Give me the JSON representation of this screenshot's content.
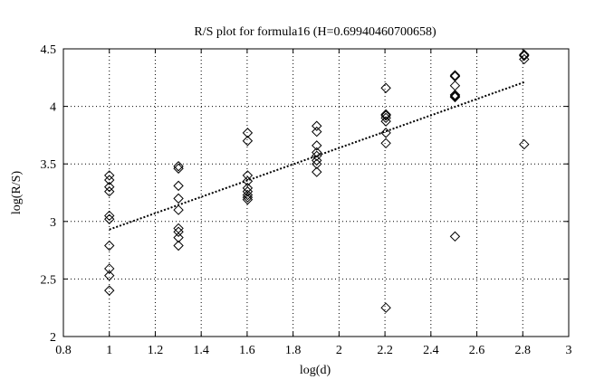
{
  "chart_data": {
    "type": "scatter",
    "title": "R/S plot for formula16 (H=0.69940460700658)",
    "xlabel": "log(d)",
    "ylabel": "log(R/S)",
    "xlim": [
      0.8,
      3
    ],
    "ylim": [
      2,
      4.5
    ],
    "xticks": [
      0.8,
      1,
      1.2,
      1.4,
      1.6,
      1.8,
      2,
      2.2,
      2.4,
      2.6,
      2.8,
      3
    ],
    "xtick_labels": [
      "0.8",
      "1",
      "1.2",
      "1.4",
      "1.6",
      "1.8",
      "2",
      "2.2",
      "2.4",
      "2.6",
      "2.8",
      "3"
    ],
    "yticks": [
      2,
      2.5,
      3,
      3.5,
      4,
      4.5
    ],
    "ytick_labels": [
      "2",
      "2.5",
      "3",
      "3.5",
      "4",
      "4.5"
    ],
    "grid": true,
    "marker": "diamond",
    "series": [
      {
        "points": [
          [
            1.0,
            2.4
          ],
          [
            1.0,
            2.53
          ],
          [
            1.0,
            2.59
          ],
          [
            1.0,
            2.79
          ],
          [
            1.0,
            3.02
          ],
          [
            1.0,
            3.05
          ],
          [
            1.0,
            3.26
          ],
          [
            1.0,
            3.3
          ],
          [
            1.0,
            3.36
          ],
          [
            1.0,
            3.4
          ],
          [
            1.301,
            2.79
          ],
          [
            1.301,
            2.86
          ],
          [
            1.301,
            2.91
          ],
          [
            1.301,
            2.94
          ],
          [
            1.301,
            3.1
          ],
          [
            1.301,
            3.2
          ],
          [
            1.301,
            3.31
          ],
          [
            1.301,
            3.46
          ],
          [
            1.301,
            3.48
          ],
          [
            1.602,
            3.19
          ],
          [
            1.602,
            3.21
          ],
          [
            1.602,
            3.23
          ],
          [
            1.602,
            3.26
          ],
          [
            1.602,
            3.29
          ],
          [
            1.602,
            3.35
          ],
          [
            1.602,
            3.4
          ],
          [
            1.602,
            3.7
          ],
          [
            1.602,
            3.77
          ],
          [
            1.903,
            3.43
          ],
          [
            1.903,
            3.5
          ],
          [
            1.903,
            3.53
          ],
          [
            1.903,
            3.57
          ],
          [
            1.903,
            3.6
          ],
          [
            1.903,
            3.66
          ],
          [
            1.903,
            3.78
          ],
          [
            1.903,
            3.83
          ],
          [
            2.204,
            2.25
          ],
          [
            2.204,
            3.68
          ],
          [
            2.204,
            3.77
          ],
          [
            2.204,
            3.87
          ],
          [
            2.204,
            3.9
          ],
          [
            2.204,
            3.92
          ],
          [
            2.204,
            3.93
          ],
          [
            2.204,
            4.16
          ],
          [
            2.505,
            2.87
          ],
          [
            2.505,
            4.08
          ],
          [
            2.505,
            4.09
          ],
          [
            2.505,
            4.1
          ],
          [
            2.505,
            4.18
          ],
          [
            2.505,
            4.26
          ],
          [
            2.505,
            4.27
          ],
          [
            2.806,
            3.67
          ],
          [
            2.806,
            4.41
          ],
          [
            2.806,
            4.44
          ],
          [
            2.806,
            4.45
          ]
        ]
      }
    ],
    "fit_line": {
      "x": [
        1.0,
        2.806
      ],
      "y": [
        2.93,
        4.21
      ]
    }
  }
}
